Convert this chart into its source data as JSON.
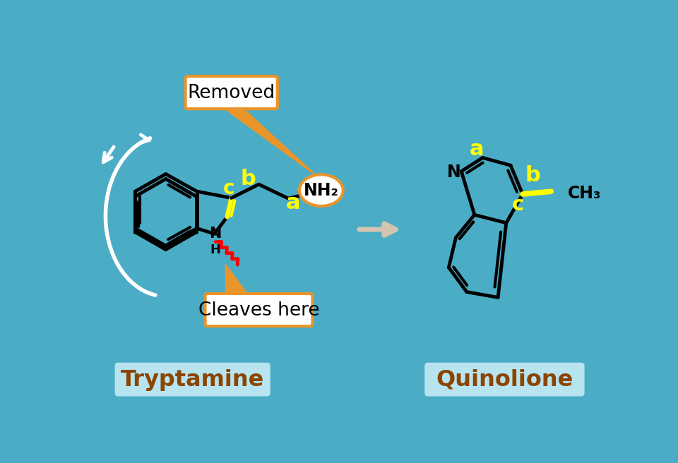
{
  "bg_color": "#4BACC6",
  "tryptamine_label": "Tryptamine",
  "quinoline_label": "Quinolione",
  "label_color": "#8B4500",
  "label_bg": "#B8E4F0",
  "yellow": "#FFFF00",
  "white": "#FFFFFF",
  "black": "#000000",
  "red": "#FF0000",
  "orange": "#E8952A",
  "removed_text": "Removed",
  "cleaves_text": "Cleaves here",
  "nh2_text": "NH₂",
  "n_text": "N",
  "h_text": "H",
  "ch3_text": "CH₃",
  "arrow_color": "#D4C5B0"
}
